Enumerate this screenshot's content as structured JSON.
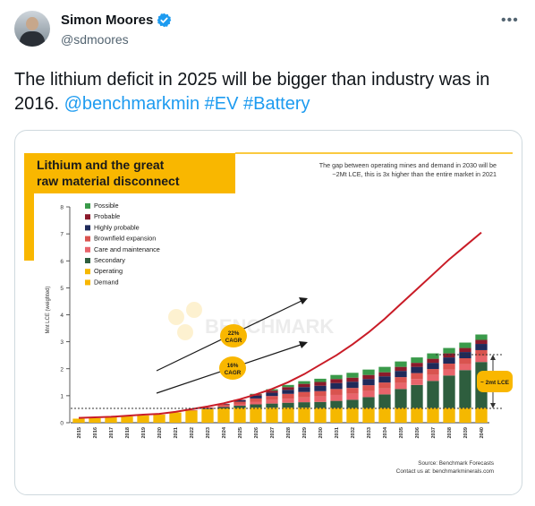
{
  "author": {
    "name": "Simon Moores",
    "handle": "@sdmoores"
  },
  "menu_icon": "more-horizontal-icon",
  "tweet": {
    "text": "The lithium deficit in 2025 will be bigger than industry was in 2016.",
    "links": [
      "@benchmarkmin",
      "#EV",
      "#Battery"
    ]
  },
  "chart_data": {
    "type": "bar",
    "title_line1": "Lithium and the great",
    "title_line2": "raw material disconnect",
    "subtitle_line1": "The gap between operating mines and demand in 2030 will be",
    "subtitle_line2": "~2Mt LCE, this is 3x higher than the entire market in 2021",
    "ylabel": "Mnt LCE (weighted)",
    "ylim": [
      0,
      8
    ],
    "yticks": [
      "0",
      "1",
      "2",
      "3",
      "4",
      "5",
      "6",
      "7",
      "8"
    ],
    "categories": [
      "2015",
      "2016",
      "2017",
      "2018",
      "2019",
      "2020",
      "2021",
      "2022",
      "2023",
      "2024",
      "2025",
      "2026",
      "2027",
      "2028",
      "2029",
      "2030",
      "2031",
      "2032",
      "2033",
      "2034",
      "2035",
      "2036",
      "2037",
      "2038",
      "2039",
      "2040"
    ],
    "legend": [
      "Possible",
      "Probable",
      "Highly probable",
      "Brownfield expansion",
      "Care and maintenance",
      "Secondary",
      "Operating",
      "Demand"
    ],
    "series": [
      {
        "name": "Operating",
        "color": "#f5b800",
        "values": [
          0.15,
          0.17,
          0.2,
          0.23,
          0.27,
          0.3,
          0.38,
          0.45,
          0.5,
          0.53,
          0.55,
          0.56,
          0.56,
          0.56,
          0.56,
          0.55,
          0.55,
          0.55,
          0.55,
          0.55,
          0.55,
          0.55,
          0.55,
          0.55,
          0.55,
          0.55
        ]
      },
      {
        "name": "Secondary",
        "color": "#2e5e3e",
        "values": [
          0,
          0,
          0,
          0,
          0,
          0,
          0,
          0,
          0.02,
          0.05,
          0.08,
          0.12,
          0.15,
          0.18,
          0.2,
          0.22,
          0.26,
          0.3,
          0.4,
          0.5,
          0.7,
          0.85,
          1.0,
          1.2,
          1.4,
          1.7
        ]
      },
      {
        "name": "Care and maintenance",
        "color": "#e8646b",
        "values": [
          0,
          0,
          0,
          0,
          0,
          0,
          0,
          0,
          0,
          0.02,
          0.05,
          0.1,
          0.13,
          0.15,
          0.18,
          0.2,
          0.22,
          0.22,
          0.22,
          0.22,
          0.22,
          0.22,
          0.22,
          0.22,
          0.22,
          0.22
        ]
      },
      {
        "name": "Brownfield expansion",
        "color": "#d9534f",
        "values": [
          0,
          0,
          0,
          0,
          0,
          0,
          0,
          0.02,
          0.05,
          0.08,
          0.1,
          0.12,
          0.15,
          0.18,
          0.2,
          0.2,
          0.22,
          0.22,
          0.22,
          0.22,
          0.22,
          0.22,
          0.22,
          0.22,
          0.22,
          0.22
        ]
      },
      {
        "name": "Highly probable",
        "color": "#1f2a5a",
        "values": [
          0,
          0,
          0,
          0,
          0,
          0,
          0,
          0,
          0,
          0.02,
          0.05,
          0.1,
          0.12,
          0.15,
          0.18,
          0.2,
          0.22,
          0.23,
          0.23,
          0.23,
          0.23,
          0.23,
          0.23,
          0.23,
          0.23,
          0.23
        ]
      },
      {
        "name": "Probable",
        "color": "#8b1a2b",
        "values": [
          0,
          0,
          0,
          0,
          0,
          0,
          0,
          0,
          0,
          0,
          0.02,
          0.05,
          0.08,
          0.1,
          0.12,
          0.14,
          0.15,
          0.15,
          0.15,
          0.15,
          0.15,
          0.15,
          0.15,
          0.15,
          0.15,
          0.15
        ]
      },
      {
        "name": "Possible",
        "color": "#3a9a4a",
        "values": [
          0,
          0,
          0,
          0,
          0,
          0,
          0,
          0,
          0,
          0,
          0,
          0.02,
          0.05,
          0.08,
          0.1,
          0.12,
          0.15,
          0.18,
          0.2,
          0.2,
          0.2,
          0.2,
          0.2,
          0.2,
          0.2,
          0.2
        ]
      }
    ],
    "demand": {
      "name": "Demand",
      "color": "#c91c27",
      "values": [
        0.18,
        0.2,
        0.22,
        0.26,
        0.3,
        0.33,
        0.4,
        0.5,
        0.6,
        0.72,
        0.87,
        1.05,
        1.25,
        1.5,
        1.8,
        2.15,
        2.5,
        2.9,
        3.35,
        3.85,
        4.4,
        4.95,
        5.5,
        6.05,
        6.55,
        7.05
      ]
    },
    "annotations": {
      "cagr_22": "22% CAGR",
      "cagr_16": "16% CAGR",
      "gap": "~ 2mt LCE",
      "watermark": "BENCHMARK",
      "source": "Source: Benchmark Forecasts",
      "contact": "Contact us at: benchmarkminerals.com"
    },
    "colors": {
      "accent_yellow": "#f9b700",
      "demand_red": "#c91c27"
    }
  }
}
